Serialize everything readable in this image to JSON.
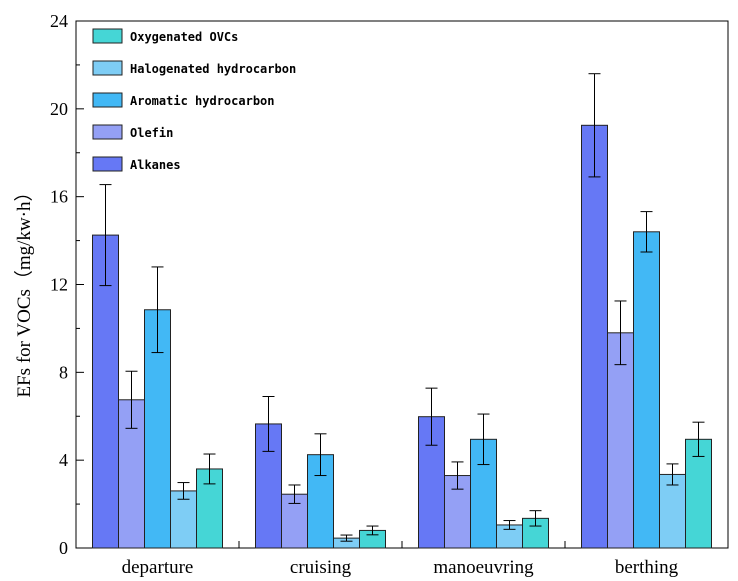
{
  "chart_data": {
    "type": "bar",
    "title": "",
    "xlabel": "",
    "ylabel": "EFs for VOCs（mg/kw·h）",
    "ylim": [
      0,
      24
    ],
    "yticks": [
      "0",
      "4",
      "8",
      "12",
      "16",
      "20",
      "24"
    ],
    "categories": [
      "departure",
      "cruising",
      "manoeuvring",
      "berthing"
    ],
    "legend_position": "top-left",
    "grid": false,
    "series": [
      {
        "name": "Alkanes",
        "color": "#6678F5",
        "values": [
          14.25,
          5.65,
          5.98,
          19.25
        ],
        "errors": [
          2.3,
          1.25,
          1.3,
          2.35
        ]
      },
      {
        "name": "Olefin",
        "color": "#94A0F5",
        "values": [
          6.75,
          2.45,
          3.3,
          9.8
        ],
        "errors": [
          1.3,
          0.42,
          0.62,
          1.45
        ]
      },
      {
        "name": "Aromatic hydrocarbon",
        "color": "#42B8F5",
        "values": [
          10.85,
          4.25,
          4.95,
          14.4
        ],
        "errors": [
          1.95,
          0.95,
          1.15,
          0.92
        ]
      },
      {
        "name": "Halogenated hydrocarbon",
        "color": "#7ECDF5",
        "values": [
          2.6,
          0.45,
          1.05,
          3.35
        ],
        "errors": [
          0.38,
          0.14,
          0.2,
          0.48
        ]
      },
      {
        "name": "Oxygenated OVCs",
        "color": "#45D6D6",
        "values": [
          3.6,
          0.8,
          1.35,
          4.95
        ],
        "errors": [
          0.68,
          0.2,
          0.35,
          0.78
        ]
      }
    ],
    "legend_order": [
      "Oxygenated OVCs",
      "Halogenated hydrocarbon",
      "Aromatic hydrocarbon",
      "Olefin",
      "Alkanes"
    ]
  }
}
